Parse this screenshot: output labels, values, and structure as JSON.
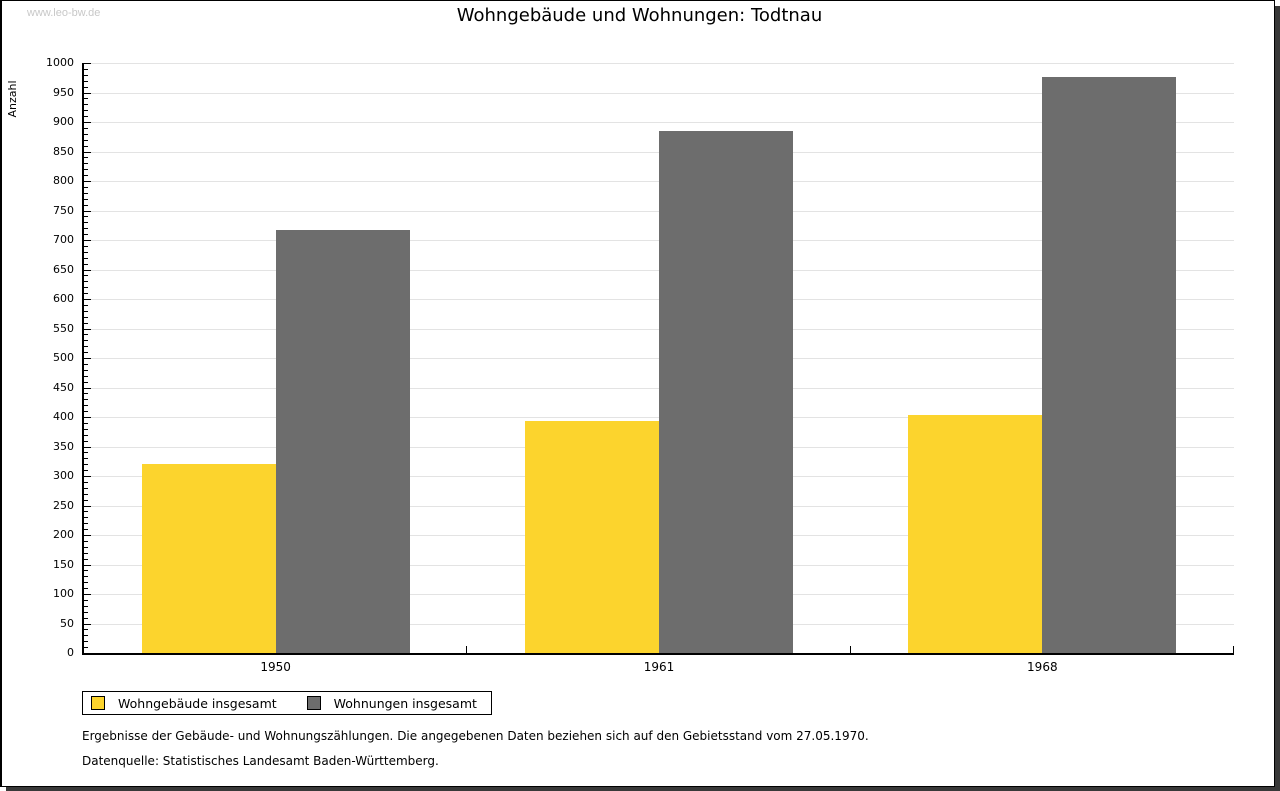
{
  "watermark": "www.leo-bw.de",
  "title": "Wohngebäude und Wohnungen: Todtnau",
  "chart_data": {
    "type": "bar",
    "title": "Wohngebäude und Wohnungen: Todtnau",
    "ylabel": "Anzahl",
    "xlabel": "",
    "categories": [
      "1950",
      "1961",
      "1968"
    ],
    "series": [
      {
        "name": "Wohngebäude insgesamt",
        "color": "#FCD42D",
        "values": [
          320,
          393,
          403
        ]
      },
      {
        "name": "Wohnungen insgesamt",
        "color": "#6D6D6D",
        "values": [
          717,
          884,
          977
        ]
      }
    ],
    "ylim": [
      0,
      1000
    ],
    "ytick_step": 50,
    "minor_tick_step": 10,
    "grid": true,
    "legend_position": "bottom-left"
  },
  "notes": [
    "Ergebnisse der Gebäude- und Wohnungszählungen. Die angegebenen Daten beziehen sich auf den Gebietsstand vom 27.05.1970.",
    "Datenquelle: Statistisches Landesamt Baden-Württemberg."
  ],
  "colors": {
    "axis": "#000000",
    "grid": "#e3e3e3",
    "watermark": "#c8c8c8",
    "background": "#ffffff",
    "frame_shadow": "#383838"
  }
}
